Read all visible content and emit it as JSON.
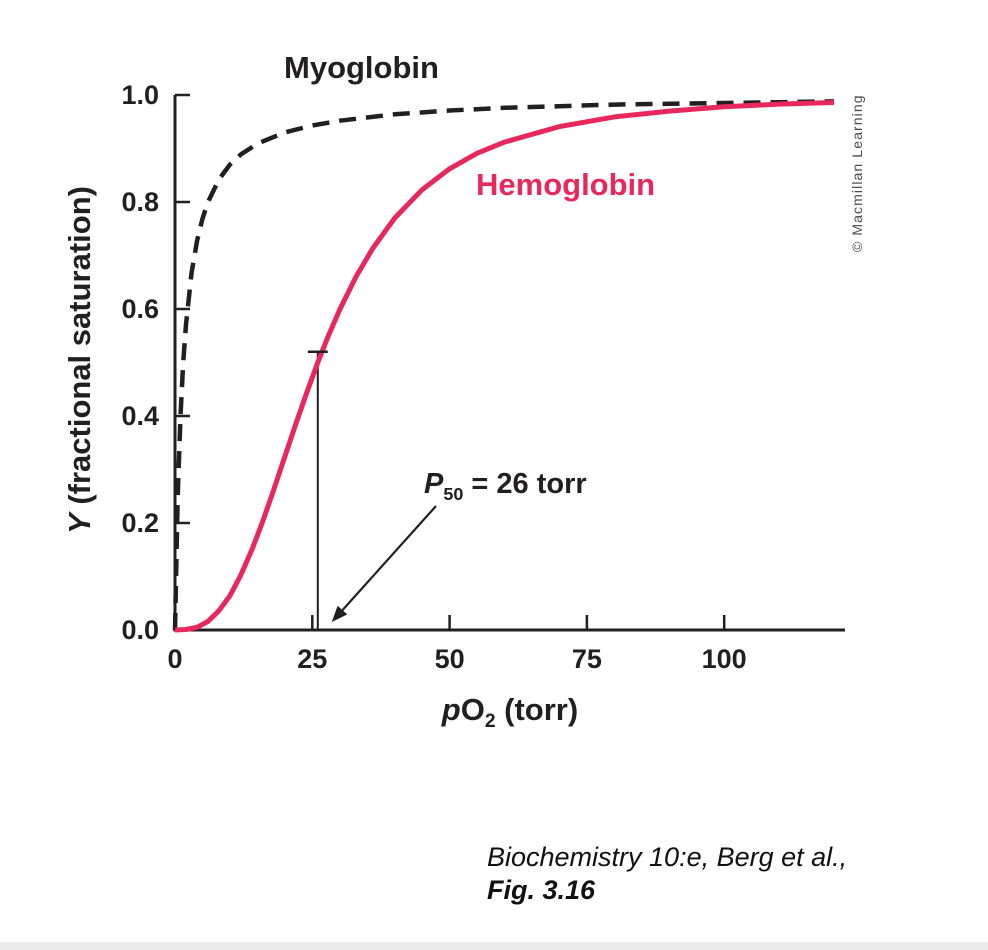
{
  "chart_data": {
    "type": "line",
    "title": "",
    "xlabel": "pO2 (torr)",
    "ylabel": "Y (fractional saturation)",
    "xlim": [
      0,
      122
    ],
    "ylim": [
      0,
      1.0
    ],
    "grid": false,
    "legend_position": "inline-curve-labels",
    "x_ticks": [
      0,
      25,
      50,
      75,
      100
    ],
    "x_tick_labels": [
      "0",
      "25",
      "50",
      "75",
      "100"
    ],
    "y_ticks": [
      0,
      0.2,
      0.4,
      0.6,
      0.8,
      1.0
    ],
    "y_tick_labels": [
      "0.0",
      "0.2",
      "0.4",
      "0.6",
      "0.8",
      "1.0"
    ],
    "series": [
      {
        "name": "Myoglobin",
        "style": "dashed",
        "color": "#231f20",
        "x": [
          0,
          0.5,
          1,
          1.5,
          2,
          3,
          4,
          5,
          6,
          8,
          10,
          12,
          15,
          20,
          25,
          30,
          40,
          50,
          60,
          80,
          100,
          120
        ],
        "y": [
          0,
          0.25,
          0.4,
          0.5,
          0.571,
          0.667,
          0.727,
          0.769,
          0.8,
          0.842,
          0.87,
          0.889,
          0.909,
          0.93,
          0.943,
          0.952,
          0.964,
          0.971,
          0.976,
          0.982,
          0.985,
          0.988
        ]
      },
      {
        "name": "Hemoglobin",
        "style": "solid",
        "color": "#e8285c",
        "x": [
          0,
          2,
          4,
          6,
          8,
          10,
          12,
          14,
          16,
          18,
          20,
          22,
          24,
          26,
          28,
          30,
          33,
          36,
          40,
          45,
          50,
          55,
          60,
          70,
          80,
          90,
          100,
          110,
          120
        ],
        "y": [
          0,
          0.001,
          0.005,
          0.016,
          0.036,
          0.064,
          0.103,
          0.15,
          0.204,
          0.263,
          0.324,
          0.385,
          0.444,
          0.5,
          0.552,
          0.599,
          0.661,
          0.713,
          0.77,
          0.823,
          0.862,
          0.891,
          0.912,
          0.941,
          0.959,
          0.97,
          0.978,
          0.983,
          0.986
        ]
      }
    ],
    "annotation": {
      "p50_x": 26,
      "p50_marker_y": 0.52,
      "p50_label_italic": "P",
      "p50_label_sub": "50",
      "p50_label_rest": " = 26 torr"
    }
  },
  "labels": {
    "myoglobin": "Myoglobin",
    "hemoglobin": "Hemoglobin"
  },
  "axis_text": {
    "y_italic": "Y",
    "y_rest": " (fractional saturation)",
    "x_italic": "p",
    "x_main": "O",
    "x_sub": "2",
    "x_rest": " (torr)"
  },
  "credit": "© Macmillan Learning",
  "caption": {
    "line1": "Biochemistry 10:e, Berg et al.,",
    "line2": "Fig. 3.16"
  },
  "colors": {
    "hemoglobin": "#e8285c",
    "ink": "#231f20"
  }
}
